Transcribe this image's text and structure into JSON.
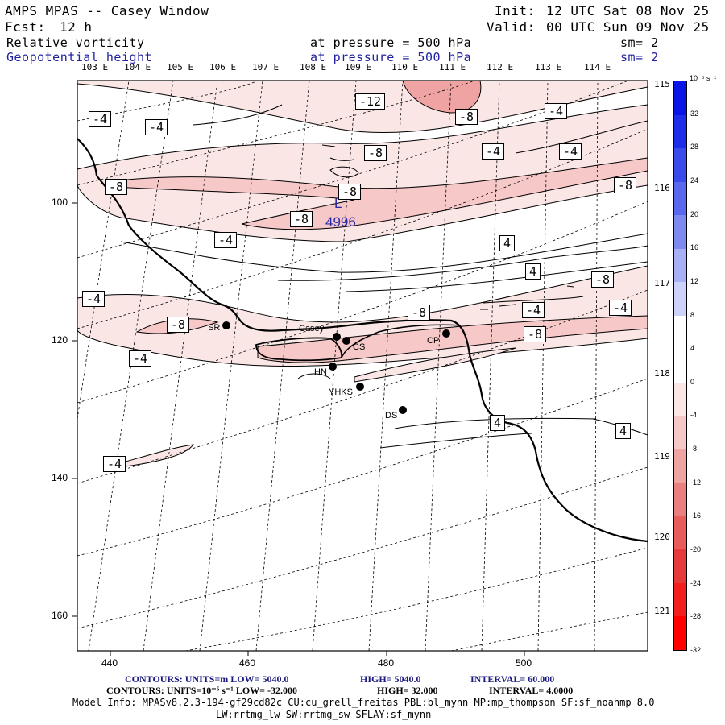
{
  "header": {
    "title": "AMPS MPAS -- Casey Window",
    "init_label": "Init:",
    "init_value": "12 UTC Sat 08 Nov 25",
    "fcst_label": "Fcst:",
    "fcst_value": "12 h",
    "valid_label": "Valid:",
    "valid_value": "00 UTC Sun 09 Nov 25",
    "field1_name": "Relative vorticity",
    "field1_level": "at pressure =  500 hPa",
    "field1_sm": "sm= 2",
    "field2_name": "Geopotential height",
    "field2_level": "at pressure =  500 hPa",
    "field2_sm": "sm= 2"
  },
  "top_longitudes": [
    "103 E",
    "104 E",
    "105 E",
    "106 E",
    "107 E",
    "108 E",
    "109 E",
    "110 E",
    "111 E",
    "112 E",
    "113 E",
    "114 E"
  ],
  "right_longitudes": [
    "115 E",
    "116 E",
    "117 E",
    "118 E",
    "119 E",
    "120 E",
    "121 E"
  ],
  "y_axis_ticks": [
    "100",
    "120",
    "140",
    "160"
  ],
  "x_axis_ticks": [
    "440",
    "460",
    "480",
    "500"
  ],
  "colorbar": {
    "unit_label": "10⁻⁵ s⁻¹",
    "labels": [
      "32",
      "28",
      "24",
      "20",
      "16",
      "12",
      "8",
      "4",
      "0",
      "-4",
      "-8",
      "-12",
      "-16",
      "-20",
      "-24",
      "-28",
      "-32"
    ],
    "colors": [
      "#0a14e6",
      "#1e2ee8",
      "#3a4aeb",
      "#5a68ee",
      "#7f8af1",
      "#a7aff5",
      "#cdd2fa",
      "#ffffff",
      "#ffffff",
      "#fbe6e6",
      "#f6c8c8",
      "#f0a3a3",
      "#eb7f7f",
      "#e85c5c",
      "#e63a3a",
      "#f51e1e",
      "#ff0000"
    ]
  },
  "contour_labels": [
    "-12",
    "-8",
    "-8",
    "-8",
    "-4",
    "-4",
    "-4",
    "-4",
    "-8",
    "-8",
    "-8",
    "-4",
    "4",
    "4",
    "-4",
    "-8",
    "-4",
    "-4",
    "-8",
    "-4",
    "-8",
    "-8",
    "-4",
    "-4",
    "4",
    "4"
  ],
  "low_center": {
    "symbol": "L",
    "value": "4996"
  },
  "stations": [
    "SR",
    "Casey",
    "CS",
    "CP",
    "HN",
    "YHKS",
    "DS"
  ],
  "footer": {
    "line1_a": "CONTOURS:  UNITS=m  LOW=  5040.0",
    "line1_b": "HIGH=  5040.0",
    "line1_c": "INTERVAL=   60.000",
    "line2_a": "CONTOURS:  UNITS=10⁻⁵ s⁻¹  LOW= -32.000",
    "line2_b": "HIGH=  32.000",
    "line2_c": "INTERVAL=   4.0000",
    "line3": "Model Info: MPASv8.2.3-194-gf29cd82c CU:cu_grell_freitas PBL:bl_mynn MP:mp_thompson SF:sf_noahmp 8.0",
    "line4": "LW:rrtmg_lw SW:rrtmg_sw SFLAY:sf_mynn"
  }
}
